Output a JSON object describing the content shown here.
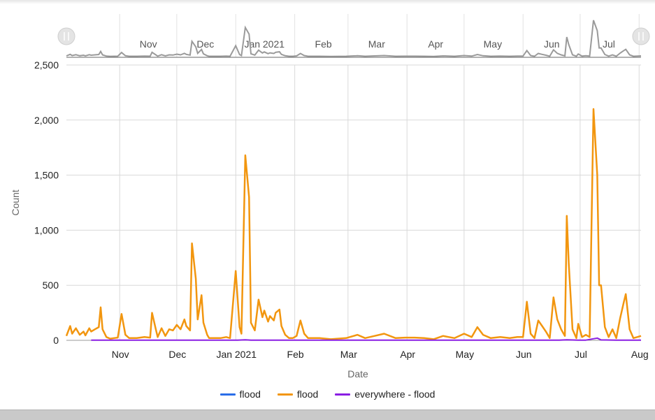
{
  "chart_data": {
    "type": "line",
    "title": "",
    "xlabel": "Date",
    "ylabel": "Count",
    "x_range": [
      "2020-10-04",
      "2021-08-02"
    ],
    "ylim": [
      0,
      2500
    ],
    "y_ticks": [
      0,
      500,
      1000,
      1500,
      2000,
      2500
    ],
    "y_tick_labels": [
      "0",
      "500",
      "1,000",
      "1,500",
      "2,000",
      "2,500"
    ],
    "x_ticks": [
      {
        "date": "2020-11-01",
        "label": "Nov"
      },
      {
        "date": "2020-12-01",
        "label": "Dec"
      },
      {
        "date": "2021-01-01",
        "label": "Jan 2021"
      },
      {
        "date": "2021-02-01",
        "label": "Feb"
      },
      {
        "date": "2021-03-01",
        "label": "Mar"
      },
      {
        "date": "2021-04-01",
        "label": "Apr"
      },
      {
        "date": "2021-05-01",
        "label": "May"
      },
      {
        "date": "2021-06-01",
        "label": "Jun"
      },
      {
        "date": "2021-07-01",
        "label": "Jul"
      },
      {
        "date": "2021-08-01",
        "label": "Aug"
      }
    ],
    "grid": true,
    "legend_position": "bottom-center",
    "navigator": true,
    "series": [
      {
        "name": "flood",
        "color": "#2a6ee8",
        "x": [],
        "y": []
      },
      {
        "name": "flood",
        "color": "#f2960f",
        "x": [
          "2020-10-04",
          "2020-10-06",
          "2020-10-07",
          "2020-10-09",
          "2020-10-11",
          "2020-10-13",
          "2020-10-14",
          "2020-10-16",
          "2020-10-17",
          "2020-10-19",
          "2020-10-21",
          "2020-10-22",
          "2020-10-23",
          "2020-10-25",
          "2020-10-27",
          "2020-10-29",
          "2020-10-31",
          "2020-11-02",
          "2020-11-04",
          "2020-11-06",
          "2020-11-10",
          "2020-11-14",
          "2020-11-17",
          "2020-11-18",
          "2020-11-20",
          "2020-11-21",
          "2020-11-23",
          "2020-11-25",
          "2020-11-27",
          "2020-11-29",
          "2020-12-01",
          "2020-12-03",
          "2020-12-05",
          "2020-12-06",
          "2020-12-08",
          "2020-12-09",
          "2020-12-11",
          "2020-12-12",
          "2020-12-14",
          "2020-12-15",
          "2020-12-17",
          "2020-12-18",
          "2020-12-20",
          "2020-12-22",
          "2020-12-24",
          "2020-12-27",
          "2020-12-29",
          "2021-01-01",
          "2021-01-03",
          "2021-01-04",
          "2021-01-06",
          "2021-01-08",
          "2021-01-09",
          "2021-01-11",
          "2021-01-13",
          "2021-01-15",
          "2021-01-16",
          "2021-01-18",
          "2021-01-19",
          "2021-01-21",
          "2021-01-22",
          "2021-01-24",
          "2021-01-25",
          "2021-01-27",
          "2021-01-29",
          "2021-01-31",
          "2021-02-02",
          "2021-02-04",
          "2021-02-06",
          "2021-02-08",
          "2021-02-10",
          "2021-02-14",
          "2021-02-20",
          "2021-02-28",
          "2021-03-06",
          "2021-03-10",
          "2021-03-15",
          "2021-03-20",
          "2021-03-26",
          "2021-03-31",
          "2021-04-05",
          "2021-04-10",
          "2021-04-15",
          "2021-04-20",
          "2021-04-23",
          "2021-04-26",
          "2021-05-01",
          "2021-05-05",
          "2021-05-08",
          "2021-05-11",
          "2021-05-15",
          "2021-05-20",
          "2021-05-25",
          "2021-05-29",
          "2021-06-01",
          "2021-06-03",
          "2021-06-05",
          "2021-06-07",
          "2021-06-09",
          "2021-06-11",
          "2021-06-13",
          "2021-06-15",
          "2021-06-17",
          "2021-06-19",
          "2021-06-21",
          "2021-06-23",
          "2021-06-24",
          "2021-06-25",
          "2021-06-27",
          "2021-06-29",
          "2021-06-30",
          "2021-07-02",
          "2021-07-04",
          "2021-07-06",
          "2021-07-08",
          "2021-07-10",
          "2021-07-11",
          "2021-07-12",
          "2021-07-14",
          "2021-07-16",
          "2021-07-18",
          "2021-07-20",
          "2021-07-22",
          "2021-07-24",
          "2021-07-25",
          "2021-07-27",
          "2021-07-29",
          "2021-07-31",
          "2021-08-02"
        ],
        "y": [
          40,
          130,
          60,
          110,
          50,
          80,
          45,
          110,
          80,
          100,
          120,
          300,
          100,
          30,
          15,
          20,
          25,
          240,
          50,
          20,
          20,
          30,
          25,
          250,
          100,
          30,
          110,
          40,
          100,
          90,
          140,
          100,
          190,
          130,
          90,
          880,
          560,
          190,
          410,
          160,
          50,
          20,
          20,
          20,
          20,
          30,
          20,
          630,
          120,
          60,
          1680,
          1300,
          160,
          90,
          370,
          210,
          270,
          170,
          220,
          180,
          250,
          280,
          130,
          50,
          20,
          20,
          40,
          180,
          60,
          20,
          20,
          20,
          10,
          20,
          50,
          20,
          40,
          60,
          20,
          25,
          25,
          20,
          10,
          40,
          30,
          20,
          60,
          30,
          120,
          50,
          20,
          30,
          20,
          30,
          30,
          350,
          60,
          20,
          180,
          130,
          80,
          20,
          390,
          190,
          100,
          40,
          1130,
          700,
          100,
          20,
          150,
          30,
          50,
          30,
          2100,
          1500,
          500,
          500,
          120,
          30,
          100,
          20,
          200,
          350,
          420,
          100,
          20,
          30,
          40
        ]
      },
      {
        "name": "everywhere - flood",
        "color": "#8a1ee3",
        "x": [
          "2020-10-17",
          "2020-11-14",
          "2020-12-12",
          "2021-01-02",
          "2021-01-06",
          "2021-01-09",
          "2021-02-14",
          "2021-03-20",
          "2021-04-20",
          "2021-05-20",
          "2021-06-20",
          "2021-06-24",
          "2021-06-30",
          "2021-07-04",
          "2021-07-10",
          "2021-07-12",
          "2021-07-20",
          "2021-08-02"
        ],
        "y": [
          2,
          2,
          2,
          2,
          5,
          2,
          1,
          1,
          1,
          1,
          2,
          5,
          2,
          2,
          20,
          4,
          2,
          2
        ]
      }
    ]
  }
}
